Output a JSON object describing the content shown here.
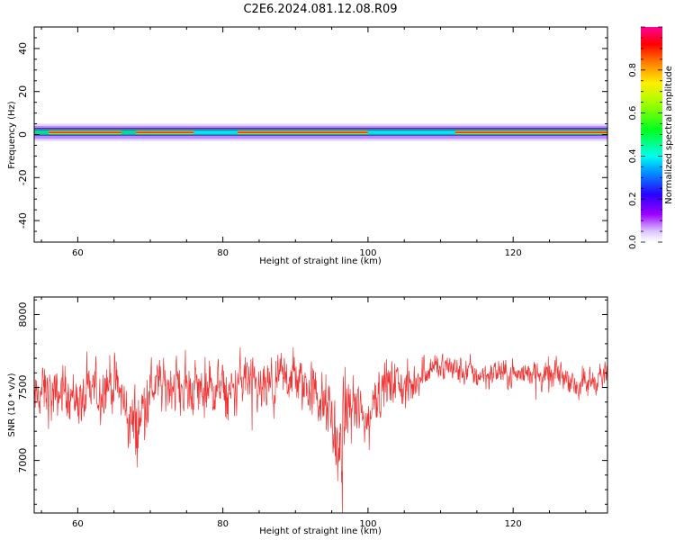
{
  "figure_title": "C2E6.2024.081.12.08.R09",
  "chart_data": [
    {
      "type": "heatmap",
      "xlabel": "Height of straight line (km)",
      "ylabel": "Frequency (Hz)",
      "xlim": [
        54,
        133
      ],
      "ylim": [
        -50,
        50
      ],
      "x_ticks": [
        60,
        80,
        100,
        120
      ],
      "y_ticks": [
        -40,
        -20,
        0,
        20,
        40
      ],
      "x_tick_labels": [
        "60",
        "80",
        "100",
        "120"
      ],
      "y_tick_labels": [
        "-40",
        "-20",
        "0",
        "20",
        "40"
      ],
      "colorbar": {
        "label": "Normalized spectral amplitude",
        "range": [
          0,
          1
        ],
        "ticks": [
          0.0,
          0.2,
          0.4,
          0.6,
          0.8
        ],
        "tick_labels": [
          "0.0",
          "0.2",
          "0.4",
          "0.6",
          "0.8"
        ],
        "colormap": "rainbow (white-violet-blue-cyan-green-yellow-red-magenta)"
      },
      "band": {
        "center_frequency_hz": 1,
        "core_halfwidth_hz": 1.5,
        "outer_halfwidth_hz": 4,
        "peak_rows_hz": [
          0,
          1,
          2
        ],
        "strong_x_ranges_km": [
          [
            56,
            66
          ],
          [
            68,
            76
          ],
          [
            82,
            100
          ],
          [
            112,
            133
          ]
        ],
        "weak_x_ranges_km": [
          [
            76,
            82
          ],
          [
            100,
            112
          ]
        ]
      }
    },
    {
      "type": "line",
      "xlabel": "Height of straight line (km)",
      "ylabel": "SNR (10 * v/v)",
      "xlim": [
        54,
        133
      ],
      "ylim": [
        6640,
        8120
      ],
      "x_ticks": [
        60,
        80,
        100,
        120
      ],
      "y_ticks": [
        7000,
        7500,
        8000
      ],
      "x_tick_labels": [
        "60",
        "80",
        "100",
        "120"
      ],
      "y_tick_labels": [
        "7000",
        "7500",
        "8000"
      ],
      "series": [
        {
          "color": "#ee3333",
          "x": [
            54,
            55,
            56,
            57,
            58,
            59,
            60,
            61,
            62,
            63,
            64,
            65,
            66,
            67,
            68,
            69,
            70,
            71,
            72,
            73,
            74,
            75,
            76,
            77,
            78,
            79,
            80,
            81,
            82,
            83,
            84,
            85,
            86,
            87,
            88,
            89,
            90,
            91,
            92,
            93,
            94,
            95,
            96,
            97,
            98,
            99,
            100,
            101,
            102,
            103,
            104,
            105,
            106,
            107,
            108,
            109,
            110,
            111,
            112,
            113,
            114,
            115,
            116,
            117,
            118,
            119,
            120,
            121,
            122,
            123,
            124,
            125,
            126,
            127,
            128,
            129,
            130,
            131,
            132,
            133
          ],
          "mean": [
            7400,
            7480,
            7450,
            7420,
            7500,
            7460,
            7420,
            7400,
            7500,
            7450,
            7550,
            7520,
            7450,
            7300,
            7200,
            7350,
            7500,
            7520,
            7480,
            7550,
            7500,
            7480,
            7520,
            7480,
            7450,
            7500,
            7480,
            7420,
            7520,
            7580,
            7500,
            7450,
            7500,
            7480,
            7520,
            7600,
            7550,
            7520,
            7500,
            7450,
            7350,
            7300,
            7000,
            7350,
            7400,
            7300,
            7250,
            7450,
            7500,
            7520,
            7550,
            7480,
            7500,
            7580,
            7620,
            7650,
            7630,
            7650,
            7620,
            7600,
            7620,
            7580,
            7600,
            7580,
            7620,
            7580,
            7600,
            7580,
            7620,
            7600,
            7580,
            7560,
            7600,
            7580,
            7560,
            7500,
            7520,
            7550,
            7580,
            7560
          ],
          "spread": [
            180,
            200,
            220,
            200,
            180,
            190,
            200,
            190,
            180,
            200,
            210,
            200,
            190,
            250,
            300,
            260,
            200,
            190,
            180,
            200,
            210,
            200,
            210,
            200,
            220,
            200,
            190,
            200,
            190,
            210,
            200,
            190,
            200,
            210,
            200,
            230,
            220,
            200,
            210,
            220,
            250,
            260,
            380,
            250,
            220,
            230,
            240,
            220,
            200,
            180,
            170,
            180,
            160,
            140,
            120,
            110,
            110,
            110,
            110,
            110,
            100,
            110,
            100,
            110,
            100,
            110,
            100,
            110,
            100,
            110,
            100,
            110,
            100,
            110,
            110,
            120,
            120,
            110,
            100,
            100
          ]
        }
      ]
    }
  ]
}
